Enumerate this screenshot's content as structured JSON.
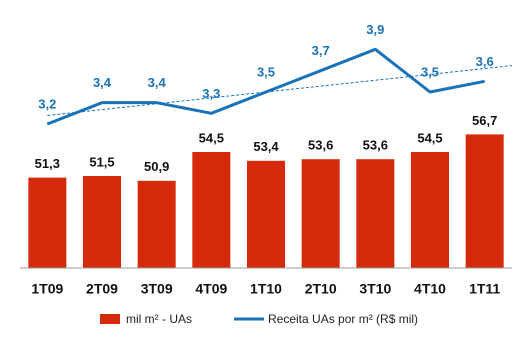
{
  "chart_data": {
    "type": "bar",
    "categories": [
      "1T09",
      "2T09",
      "3T09",
      "4T09",
      "1T10",
      "2T10",
      "3T10",
      "4T10",
      "1T11"
    ],
    "series": [
      {
        "name": "mil m² - UAs",
        "color": "#d52a0c",
        "type": "bar",
        "values": [
          51.3,
          51.5,
          50.9,
          54.5,
          53.4,
          53.6,
          53.6,
          54.5,
          56.7
        ],
        "value_labels": [
          "51,3",
          "51,5",
          "50,9",
          "54,5",
          "53,4",
          "53,6",
          "53,6",
          "54,5",
          "56,7"
        ]
      },
      {
        "name": "Receita UAs por m² (R$ mil)",
        "color": "#1a72b8",
        "type": "line",
        "axis": "y2",
        "trendline": true,
        "values": [
          3.2,
          3.4,
          3.4,
          3.3,
          3.5,
          3.7,
          3.9,
          3.5,
          3.6
        ],
        "value_labels": [
          "3,2",
          "3,4",
          "3,4",
          "3,3",
          "3,5",
          "3,7",
          "3,9",
          "3,5",
          "3,6"
        ]
      }
    ],
    "ylim": [
      40,
      70
    ],
    "y2lim": [
      1.85,
      4.1
    ],
    "legend": "bottom"
  }
}
